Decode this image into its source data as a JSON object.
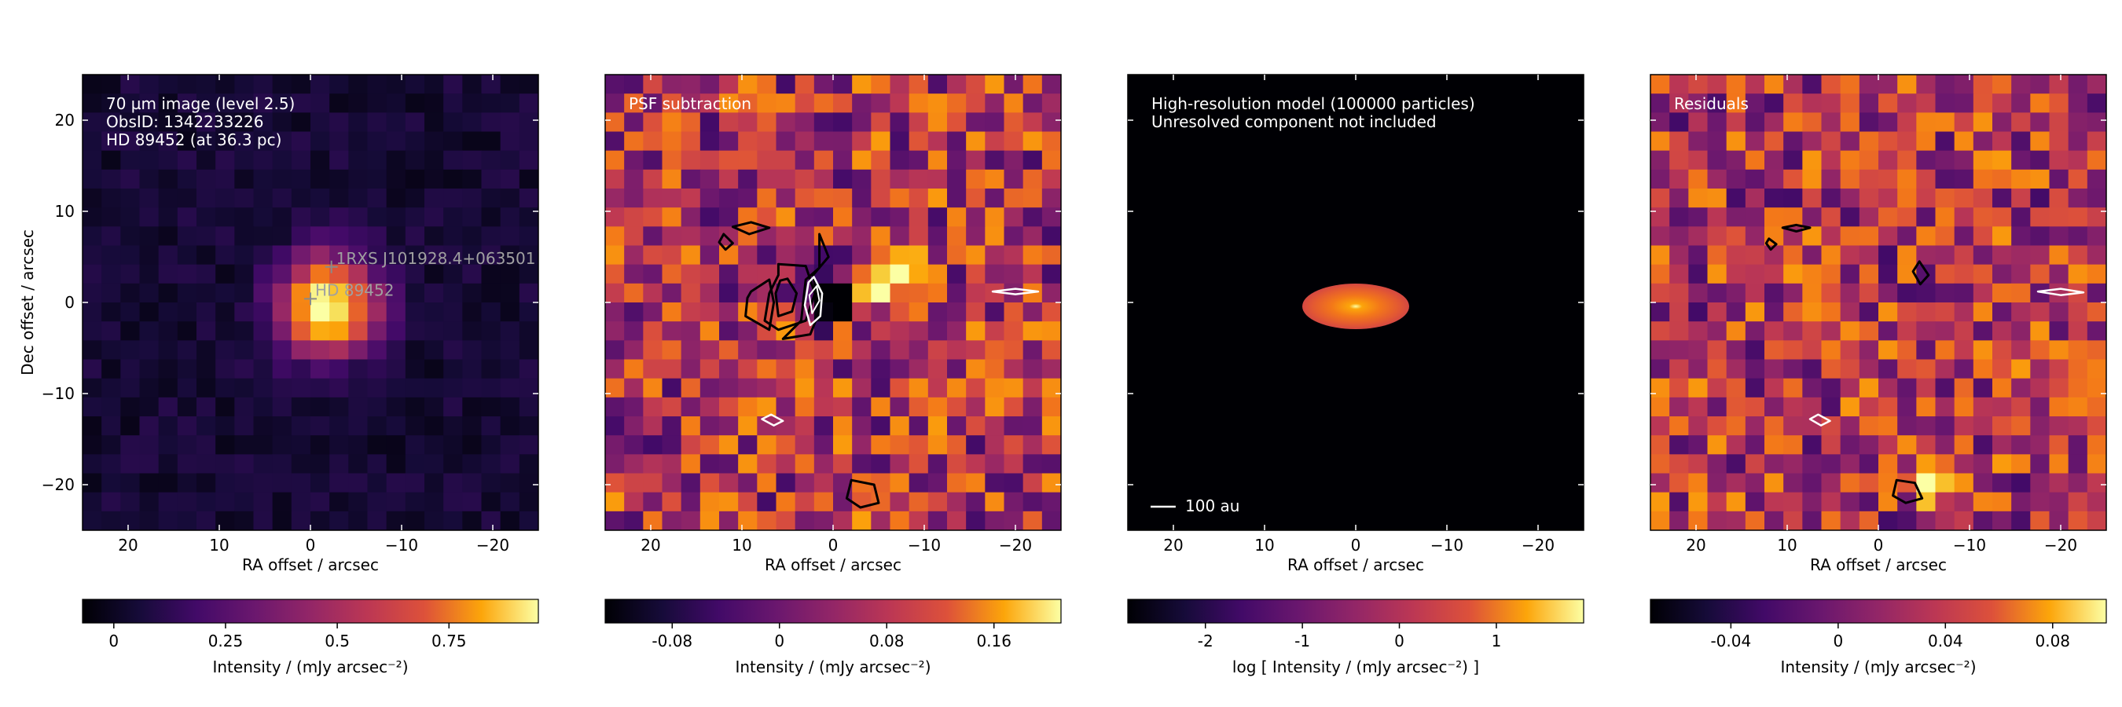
{
  "figure": {
    "x_axis_label": "RA offset / arcsec",
    "y_axis_label": "Dec offset / arcsec"
  },
  "chart_data": [
    {
      "type": "heatmap",
      "panel": "observation",
      "annotation_lines": [
        "70 µm image (level 2.5)",
        "ObsID: 1342233226",
        "HD 89452 (at 36.3 pc)"
      ],
      "xlabel": "RA offset / arcsec",
      "ylabel": "Dec offset / arcsec",
      "xlim": [
        25,
        -25
      ],
      "ylim": [
        -25,
        25
      ],
      "xticks": [
        20,
        10,
        0,
        -10,
        -20
      ],
      "xtick_labels": [
        "20",
        "10",
        "0",
        "−10",
        "−20"
      ],
      "yticks": [
        20,
        10,
        0,
        -10,
        -20
      ],
      "ytick_labels": [
        "20",
        "10",
        "0",
        "−10",
        "−20"
      ],
      "markers": [
        {
          "label": "HD 89452",
          "x": 0,
          "y": 0.4
        },
        {
          "label": "1RXS J101928.4+063501",
          "x": -2.3,
          "y": 3.9
        }
      ],
      "colorbar": {
        "label": "Intensity / (mJy arcsec⁻²)",
        "range": [
          -0.07,
          0.95
        ],
        "ticks": [
          0,
          0.25,
          0.5,
          0.75
        ],
        "tick_labels": [
          "0",
          "0.25",
          "0.5",
          "0.75"
        ]
      }
    },
    {
      "type": "heatmap",
      "panel": "psf_subtraction",
      "annotation_lines": [
        "PSF subtraction"
      ],
      "xlabel": "RA offset / arcsec",
      "xlim": [
        25,
        -25
      ],
      "ylim": [
        -25,
        25
      ],
      "xticks": [
        20,
        10,
        0,
        -10,
        -20
      ],
      "xtick_labels": [
        "20",
        "10",
        "0",
        "−10",
        "−20"
      ],
      "colorbar": {
        "label": "Intensity / (mJy arcsec⁻²)",
        "range": [
          -0.13,
          0.21
        ],
        "ticks": [
          -0.08,
          0,
          0.08,
          0.16
        ],
        "tick_labels": [
          "-0.08",
          "0",
          "0.08",
          "0.16"
        ]
      }
    },
    {
      "type": "heatmap",
      "panel": "model",
      "annotation_lines": [
        "High-resolution model (100000 particles)",
        "Unresolved component not included"
      ],
      "scale_bar": {
        "label": "100 au",
        "length_arcsec": 2.75
      },
      "xlabel": "RA offset / arcsec",
      "xlim": [
        25,
        -25
      ],
      "ylim": [
        -25,
        25
      ],
      "xticks": [
        20,
        10,
        0,
        -10,
        -20
      ],
      "xtick_labels": [
        "20",
        "10",
        "0",
        "−10",
        "−20"
      ],
      "colorbar": {
        "label": "log [ Intensity / (mJy arcsec⁻²) ]",
        "range": [
          -2.8,
          1.9
        ],
        "ticks": [
          -2,
          -1,
          0,
          1
        ],
        "tick_labels": [
          "-2",
          "-1",
          "0",
          "1"
        ]
      }
    },
    {
      "type": "heatmap",
      "panel": "residuals",
      "annotation_lines": [
        "Residuals"
      ],
      "xlabel": "RA offset / arcsec",
      "xlim": [
        25,
        -25
      ],
      "ylim": [
        -25,
        25
      ],
      "xticks": [
        20,
        10,
        0,
        -10,
        -20
      ],
      "xtick_labels": [
        "20",
        "10",
        "0",
        "−10",
        "−20"
      ],
      "colorbar": {
        "label": "Intensity / (mJy arcsec⁻²)",
        "range": [
          -0.07,
          0.1
        ],
        "ticks": [
          -0.04,
          0,
          0.04,
          0.08
        ],
        "tick_labels": [
          "-0.04",
          "0",
          "0.04",
          "0.08"
        ]
      }
    }
  ]
}
